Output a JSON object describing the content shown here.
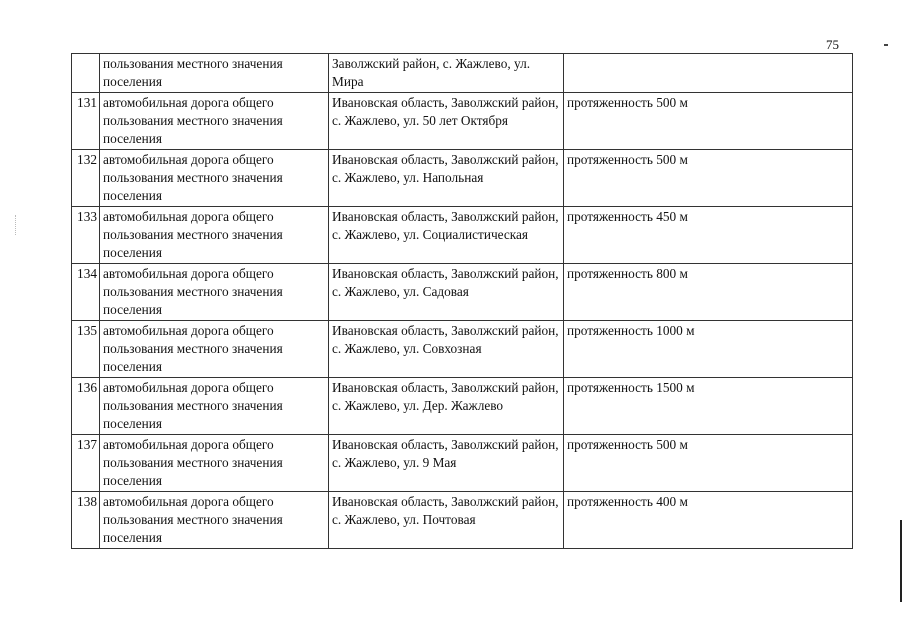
{
  "page_number": "75",
  "table": {
    "continued_row": {
      "number": "",
      "name": "пользования местного значения поселения",
      "location": "Заволжский район, с. Жажлево, ул. Мира",
      "characteristic": ""
    },
    "rows": [
      {
        "number": "131",
        "name": "автомобильная дорога общего пользования местного значения поселения",
        "location": "Ивановская область, Заволжский район, с. Жажлево, ул. 50 лет Октября",
        "characteristic": "протяженность 500 м"
      },
      {
        "number": "132",
        "name": "автомобильная дорога общего пользования местного значения поселения",
        "location": "Ивановская область, Заволжский район, с. Жажлево, ул. Напольная",
        "characteristic": "протяженность 500 м"
      },
      {
        "number": "133",
        "name": "автомобильная дорога общего пользования местного значения поселения",
        "location": "Ивановская область, Заволжский район, с. Жажлево, ул. Социалистическая",
        "characteristic": "протяженность 450 м"
      },
      {
        "number": "134",
        "name": "автомобильная дорога общего пользования местного значения поселения",
        "location": "Ивановская область, Заволжский район, с. Жажлево, ул. Садовая",
        "characteristic": "протяженность 800 м"
      },
      {
        "number": "135",
        "name": "автомобильная дорога общего пользования местного значения поселения",
        "location": "Ивановская область, Заволжский район, с. Жажлево, ул. Совхозная",
        "characteristic": "протяженность 1000 м"
      },
      {
        "number": "136",
        "name": "автомобильная дорога общего пользования местного значения поселения",
        "location": "Ивановская область, Заволжский район, с. Жажлево, ул. Дер. Жажлево",
        "characteristic": "протяженность 1500 м"
      },
      {
        "number": "137",
        "name": "автомобильная дорога общего пользования местного значения поселения",
        "location": "Ивановская область, Заволжский район, с. Жажлево, ул. 9 Мая",
        "characteristic": "протяженность 500 м"
      },
      {
        "number": "138",
        "name": "автомобильная дорога общего пользования местного значения поселения",
        "location": "Ивановская область, Заволжский район, с. Жажлево, ул. Почтовая",
        "characteristic": "протяженность 400 м"
      }
    ]
  }
}
